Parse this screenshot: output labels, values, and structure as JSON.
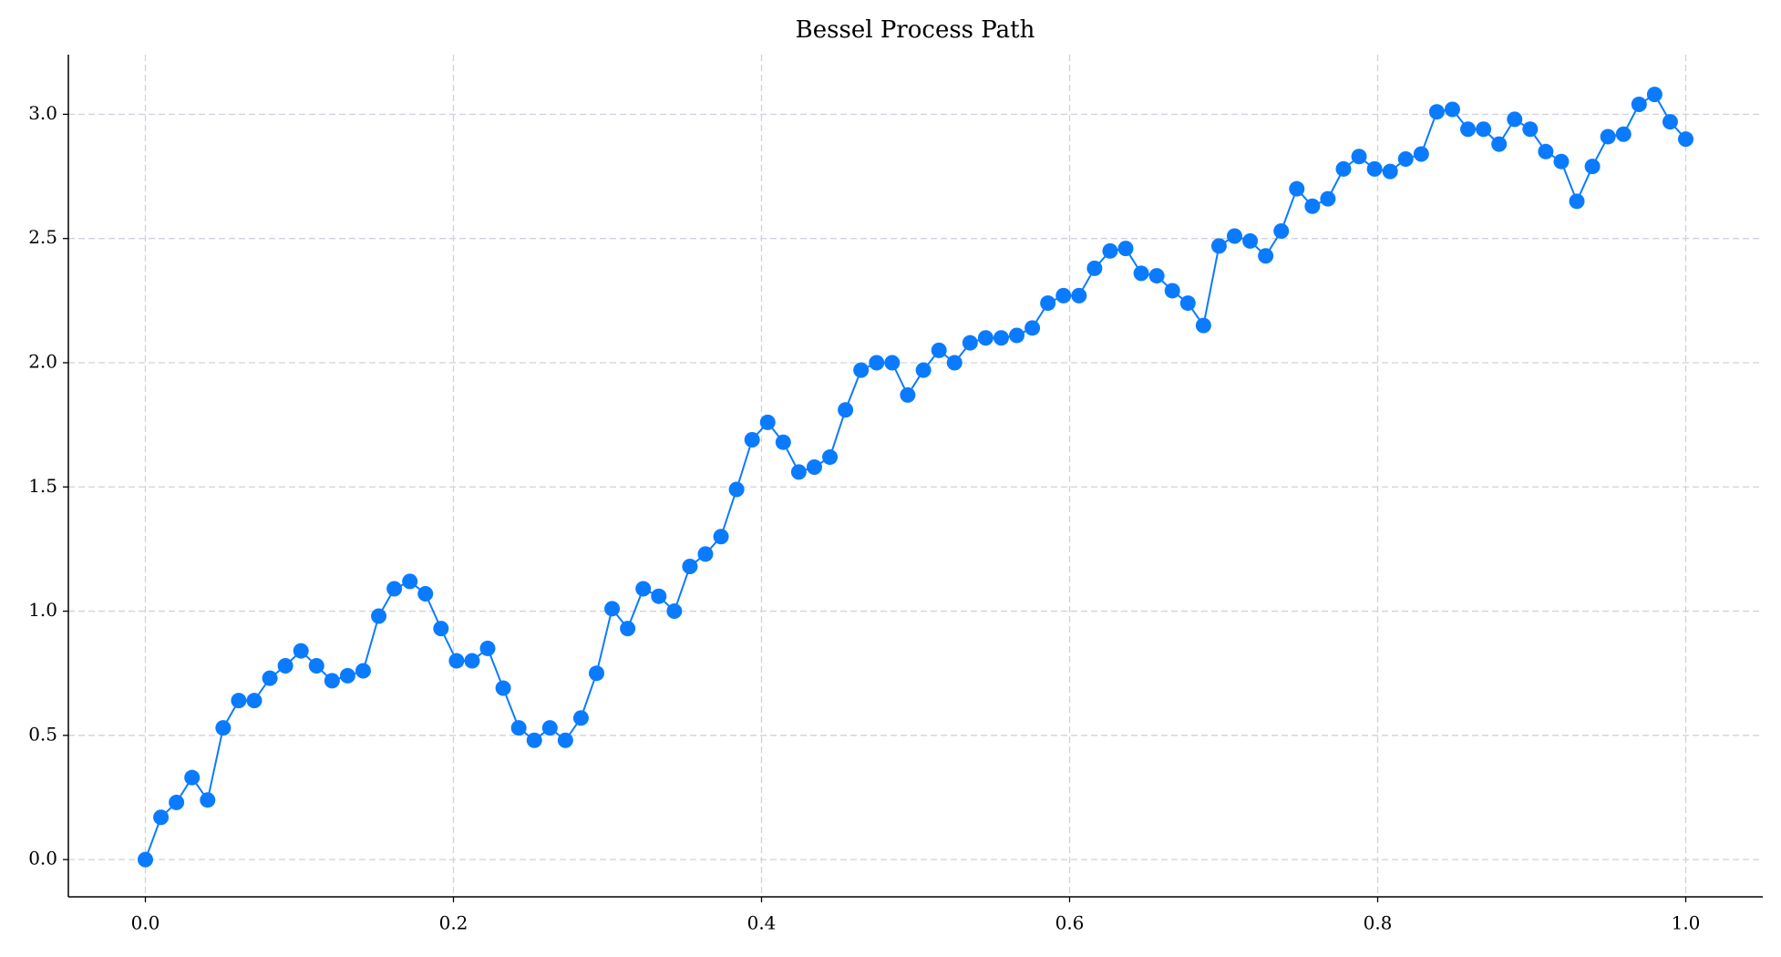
{
  "chart_data": {
    "type": "line",
    "title": "Bessel Process Path",
    "x": [
      0,
      0.0101,
      0.0202,
      0.0303,
      0.0404,
      0.0505,
      0.0606,
      0.0707,
      0.0808,
      0.0909,
      0.101,
      0.1111,
      0.1212,
      0.1313,
      0.1414,
      0.1515,
      0.1616,
      0.1717,
      0.1818,
      0.1919,
      0.202,
      0.2121,
      0.2222,
      0.2323,
      0.2424,
      0.2525,
      0.2626,
      0.2727,
      0.2828,
      0.2929,
      0.303,
      0.3131,
      0.3232,
      0.3333,
      0.3434,
      0.3535,
      0.3636,
      0.3737,
      0.3838,
      0.3939,
      0.404,
      0.4141,
      0.4242,
      0.4343,
      0.4444,
      0.4545,
      0.4646,
      0.4747,
      0.4848,
      0.4949,
      0.5051,
      0.5152,
      0.5253,
      0.5354,
      0.5455,
      0.5556,
      0.5657,
      0.5758,
      0.5859,
      0.596,
      0.6061,
      0.6162,
      0.6263,
      0.6364,
      0.6465,
      0.6566,
      0.6667,
      0.6768,
      0.6869,
      0.697,
      0.7071,
      0.7172,
      0.7273,
      0.7374,
      0.7475,
      0.7576,
      0.7677,
      0.7778,
      0.7879,
      0.798,
      0.8081,
      0.8182,
      0.8283,
      0.8384,
      0.8485,
      0.8586,
      0.8687,
      0.8788,
      0.8889,
      0.899,
      0.9091,
      0.9192,
      0.9293,
      0.9394,
      0.9495,
      0.9596,
      0.9697,
      0.9798,
      0.9899,
      1.0
    ],
    "series": [
      {
        "color": "#0a7bff",
        "values": [
          0,
          0.17,
          0.23,
          0.33,
          0.24,
          0.53,
          0.64,
          0.64,
          0.73,
          0.78,
          0.84,
          0.78,
          0.72,
          0.74,
          0.76,
          0.98,
          1.09,
          1.12,
          1.07,
          0.93,
          0.8,
          0.8,
          0.85,
          0.69,
          0.53,
          0.48,
          0.53,
          0.48,
          0.57,
          0.75,
          1.01,
          0.93,
          1.09,
          1.06,
          1.0,
          1.18,
          1.23,
          1.3,
          1.49,
          1.69,
          1.76,
          1.68,
          1.56,
          1.58,
          1.62,
          1.81,
          1.97,
          2.0,
          2.0,
          1.87,
          1.97,
          2.05,
          2.0,
          2.08,
          2.1,
          2.1,
          2.11,
          2.14,
          2.24,
          2.27,
          2.27,
          2.38,
          2.45,
          2.46,
          2.36,
          2.35,
          2.29,
          2.24,
          2.15,
          2.47,
          2.51,
          2.49,
          2.43,
          2.53,
          2.7,
          2.63,
          2.66,
          2.78,
          2.83,
          2.78,
          2.77,
          2.82,
          2.84,
          3.01,
          3.02,
          2.94,
          2.94,
          2.88,
          2.98,
          2.94,
          2.85,
          2.81,
          2.65,
          2.79,
          2.91,
          2.92,
          3.04,
          3.08,
          2.97,
          2.9
        ]
      }
    ],
    "xlim": [
      -0.05,
      1.05
    ],
    "xticks": [
      {
        "value": 0,
        "label": "0.0"
      },
      0.2,
      0.4,
      0.6,
      0.8,
      {
        "value": 1,
        "label": "1.0"
      }
    ],
    "ylim": [
      -0.15,
      3.24
    ],
    "yticks": [
      {
        "value": 0,
        "label": "0.0"
      },
      0.5,
      {
        "value": 1,
        "label": "1.0"
      },
      1.5,
      {
        "value": 2,
        "label": "2.0"
      },
      2.5,
      {
        "value": 3,
        "label": "3.0"
      }
    ],
    "grid": true,
    "markers": true
  }
}
